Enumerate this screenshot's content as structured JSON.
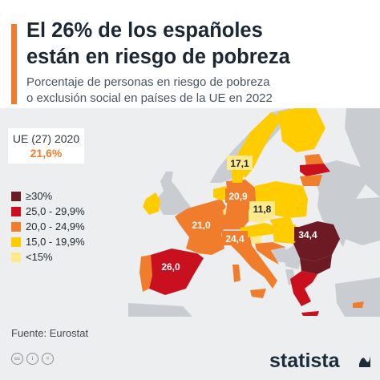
{
  "header": {
    "title_line1": "El 26% de los españoles",
    "title_line2": "están en riesgo de pobreza",
    "subtitle_line1": "Porcentaje de personas en riesgo de pobreza",
    "subtitle_line2": "o exclusión social en países de la UE en 2022",
    "accent_color": "#f07d2b"
  },
  "eu_average": {
    "label": "UE (27) 2020",
    "value": "21,6%",
    "color": "#f07d2b"
  },
  "legend": [
    {
      "label": "≥30%",
      "color": "#6e1a25"
    },
    {
      "label": "25,0 - 29,9%",
      "color": "#c8101e"
    },
    {
      "label": "20,0 - 24,9%",
      "color": "#f07d2b"
    },
    {
      "label": "15,0 - 19,9%",
      "color": "#ffcc00"
    },
    {
      "label": "<15%",
      "color": "#ffe98a"
    }
  ],
  "map_labels": [
    {
      "country": "Spain",
      "value": "26,0",
      "bracket": "25,0 - 29,9%"
    },
    {
      "country": "France",
      "value": "21,0",
      "bracket": "20,0 - 24,9%"
    },
    {
      "country": "Germany",
      "value": "20,9",
      "bracket": "20,0 - 24,9%"
    },
    {
      "country": "Italy",
      "value": "24,4",
      "bracket": "20,0 - 24,9%"
    },
    {
      "country": "Czechia",
      "value": "11,8",
      "bracket": "<15%"
    },
    {
      "country": "Denmark",
      "value": "17,1",
      "bracket": "15,0 - 19,9%"
    },
    {
      "country": "Romania",
      "value": "34,4",
      "bracket": "≥30%"
    }
  ],
  "source": "Fuente: Eurostat",
  "footer": {
    "brand": "statista",
    "license_icons": [
      "cc-icon",
      "by-icon",
      "nd-icon"
    ]
  }
}
